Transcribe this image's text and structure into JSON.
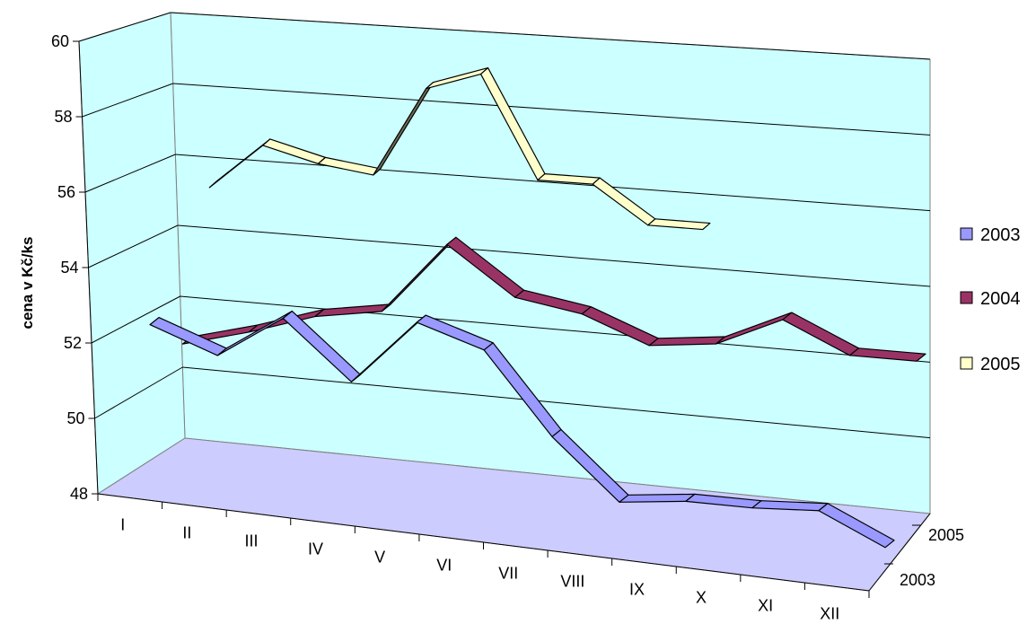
{
  "chart_data": {
    "type": "line",
    "style": "3d-ribbon",
    "ylabel": "cena v Kč/ks",
    "ylim": [
      48,
      60
    ],
    "yticks": [
      "48",
      "50",
      "52",
      "54",
      "56",
      "58",
      "60"
    ],
    "categories": [
      "I",
      "II",
      "III",
      "IV",
      "V",
      "VI",
      "VII",
      "VIII",
      "IX",
      "X",
      "XI",
      "XII"
    ],
    "depth_labels": [
      "2005",
      "2003"
    ],
    "grid": true,
    "legend_position": "right",
    "colors": {
      "wall": "#ccffff",
      "floor": "#ccccff",
      "gridline": "#000000",
      "2003": "#9999ff",
      "2004": "#993366",
      "2005": "#ffffcc",
      "2005_shadow": "#6b6b55"
    },
    "series": [
      {
        "name": "2003",
        "values": [
          52.3,
          51.6,
          52.8,
          51.2,
          53.0,
          52.4,
          50.2,
          48.6,
          48.8,
          48.8,
          48.9,
          48.1
        ]
      },
      {
        "name": "2004",
        "values": [
          51.2,
          51.7,
          52.3,
          52.6,
          54.6,
          53.3,
          53.0,
          52.3,
          52.5,
          53.3,
          52.5,
          52.5
        ]
      },
      {
        "name": "2005",
        "values": [
          55.1,
          56.4,
          56.0,
          55.8,
          58.3,
          58.8,
          56.0,
          56.0,
          55.0,
          55.0,
          null,
          null
        ]
      }
    ]
  }
}
